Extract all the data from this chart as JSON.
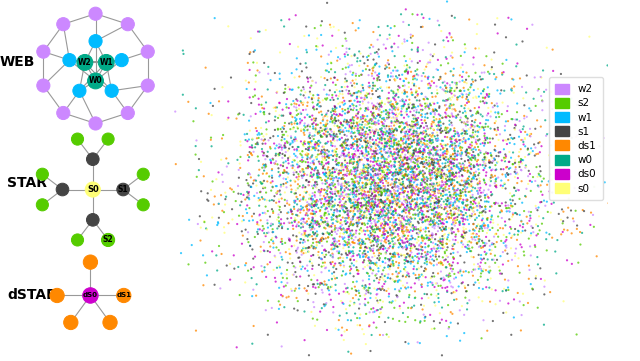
{
  "colors": {
    "w2": "#CC88FF",
    "s2": "#55CC00",
    "w1": "#00BBFF",
    "s1": "#444444",
    "ds1": "#FF8800",
    "w0": "#00AA88",
    "ds0": "#CC00CC",
    "s0": "#FFFF77"
  },
  "legend_order": [
    "w2",
    "s2",
    "w1",
    "s1",
    "ds1",
    "w0",
    "ds0",
    "s0"
  ],
  "scatter_n": 8000,
  "scatter_seed": 42,
  "background": "#FFFFFF",
  "edge_color": "#999999",
  "graph_label_fontsize": 10
}
